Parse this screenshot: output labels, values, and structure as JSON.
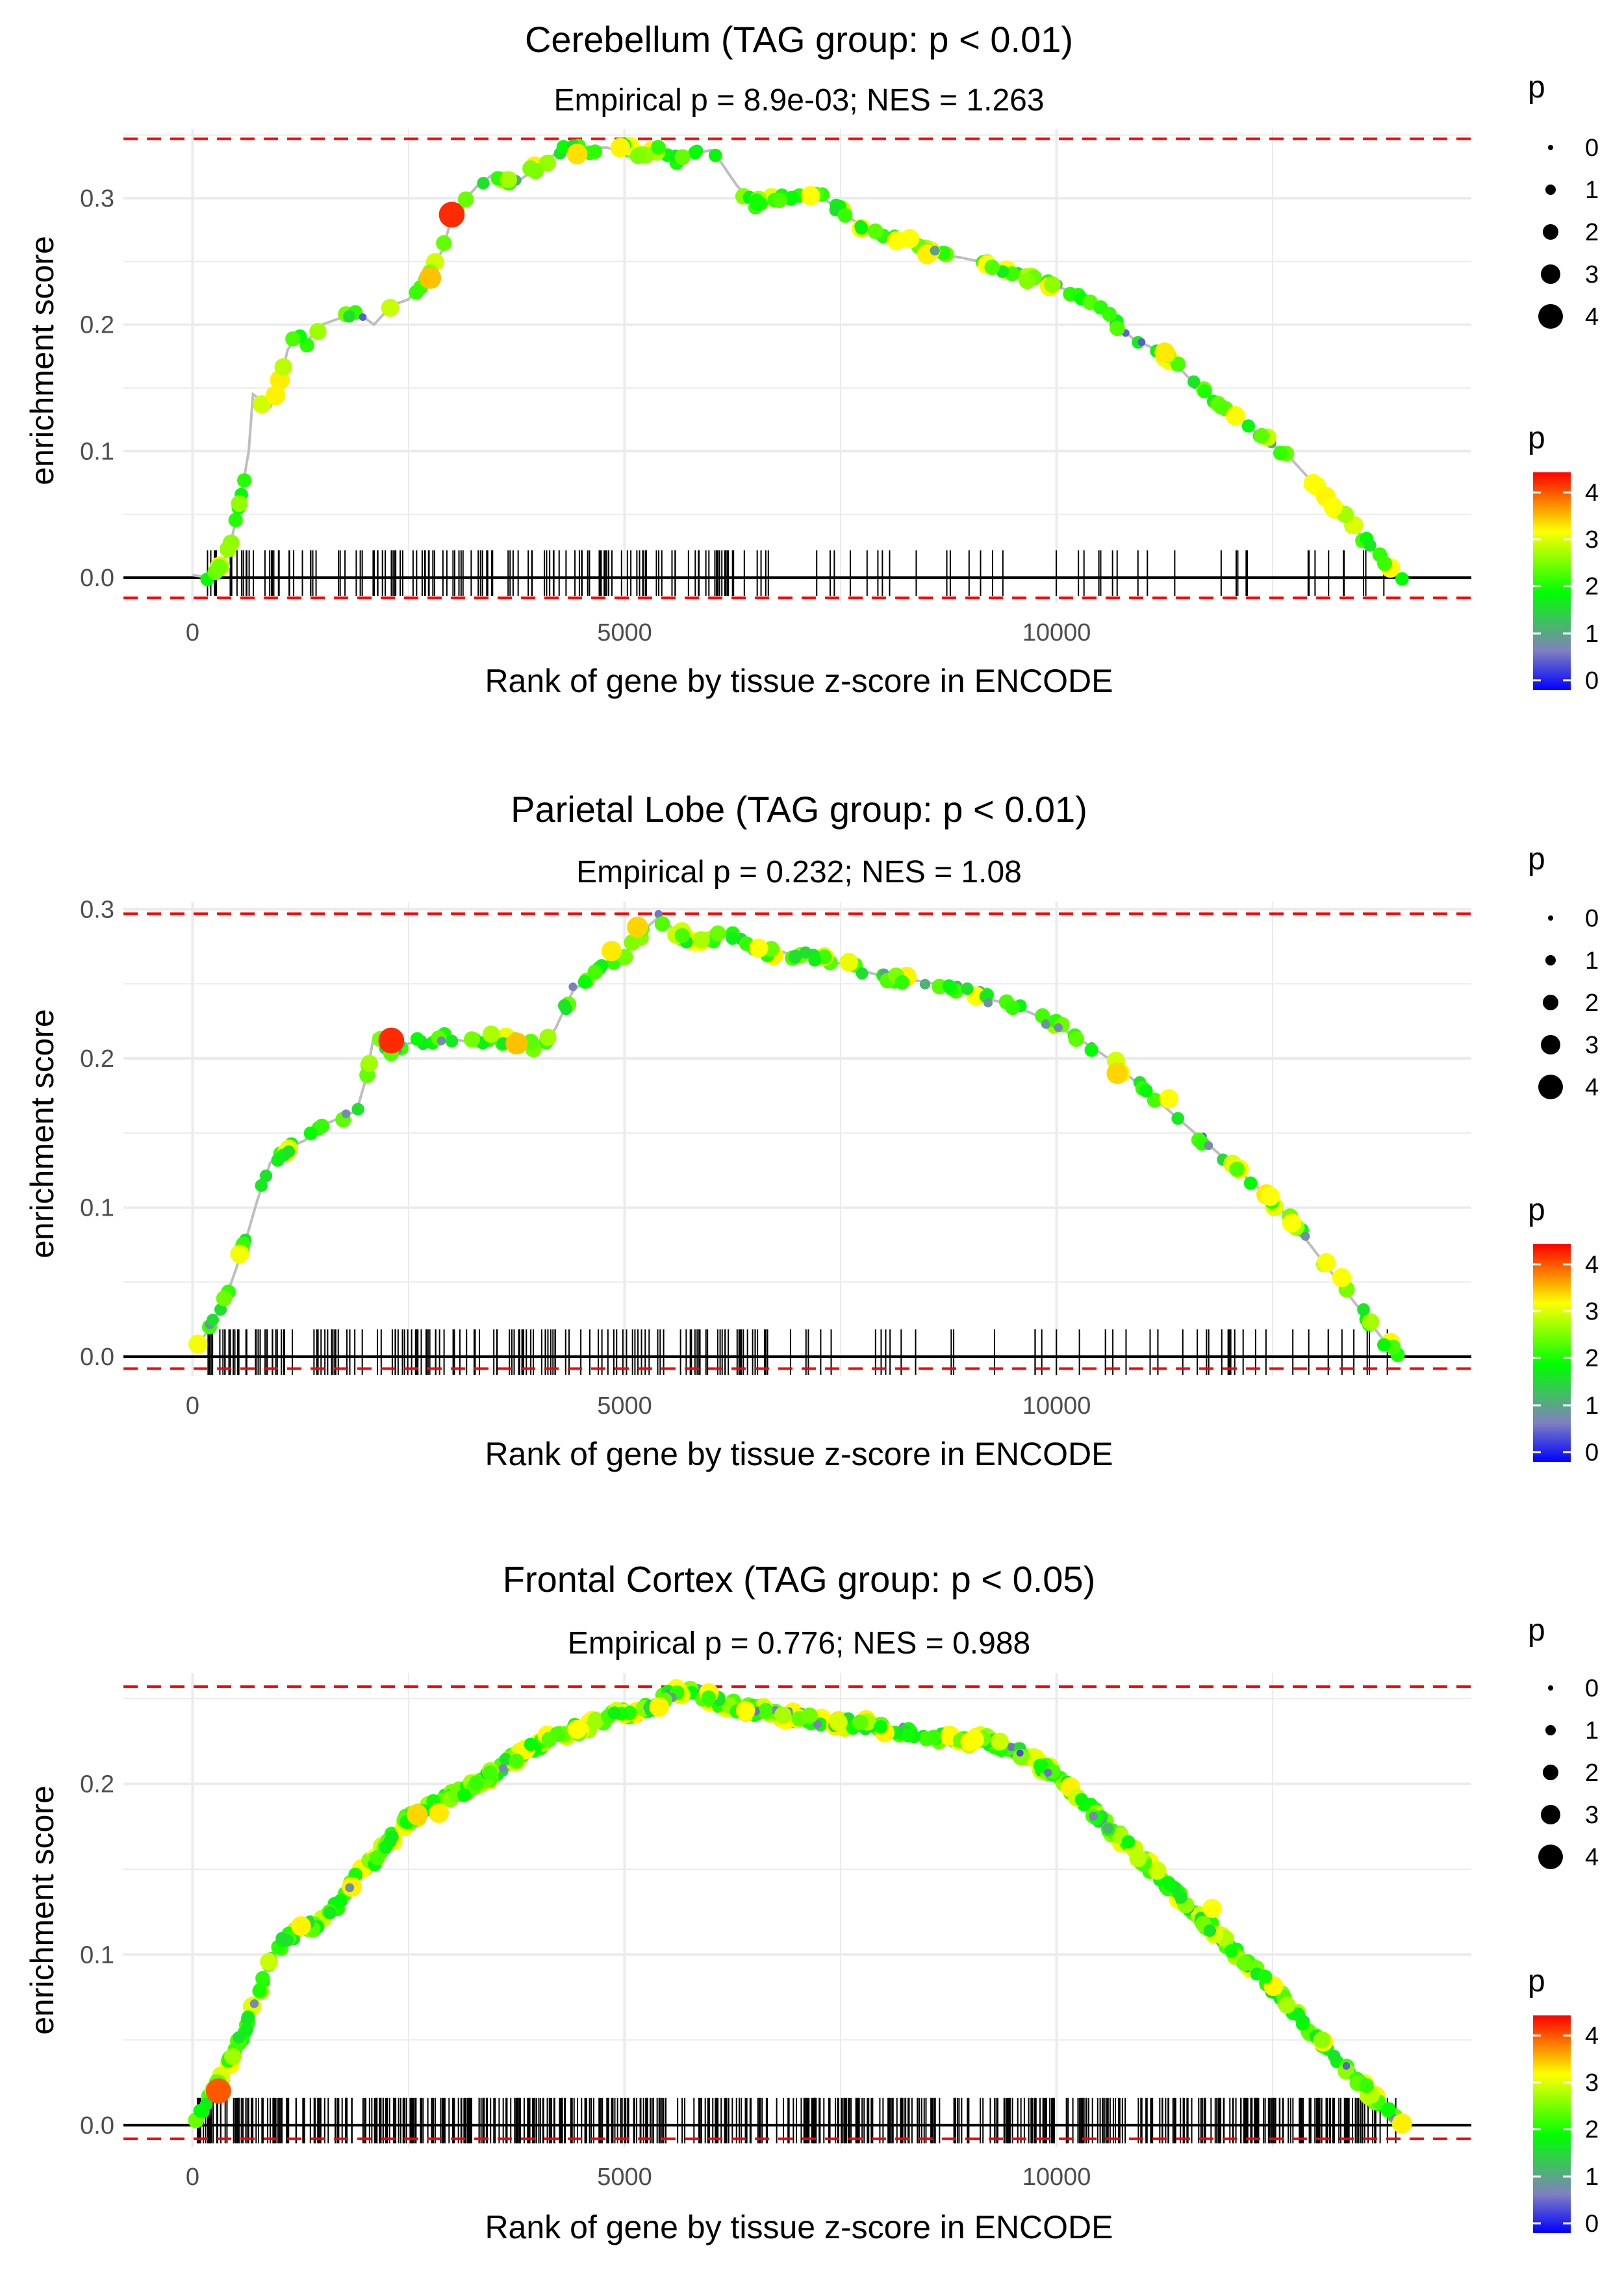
{
  "figure": {
    "x_axis_label": "Rank of gene by tissue z-score in ENCODE",
    "y_axis_label": "enrichment score",
    "size_legend_title": "p",
    "color_legend_title": "p",
    "size_legend_labels": [
      "0",
      "1",
      "2",
      "3",
      "4"
    ],
    "color_legend_labels": [
      "4",
      "3",
      "2",
      "1",
      "0"
    ],
    "colors": {
      "curve_line": "#bebebe",
      "max_line": "#ff0000",
      "zero_line": "#000000",
      "rug": "#000000",
      "gradient": [
        "#ff0000",
        "#ffff00",
        "#00ff00",
        "#8080c0",
        "#0000ff"
      ]
    }
  },
  "chart_data": [
    {
      "type": "scatter",
      "title": "Cerebellum (TAG group: p < 0.01)",
      "subtitle": "Empirical p = 8.9e-03; NES = 1.263",
      "xlabel": "Rank of gene by tissue z-score in ENCODE",
      "ylabel": "enrichment score",
      "xlim": [
        -800,
        14800
      ],
      "ylim": [
        -0.02,
        0.355
      ],
      "x_ticks": [
        0,
        5000,
        10000
      ],
      "x_tick_labels": [
        "0",
        "5000",
        "10000"
      ],
      "y_ticks": [
        0,
        0.1,
        0.2,
        0.3
      ],
      "y_tick_labels": [
        "0.0",
        "0.1",
        "0.2",
        "0.3"
      ],
      "max_es": 0.347,
      "min_es": -0.016,
      "n_genes": 14000,
      "n_points": 180,
      "seed": 11,
      "rug_count": 180,
      "rug_style": "sparse",
      "curve_x": [
        0,
        200,
        350,
        450,
        550,
        650,
        700,
        800,
        900,
        1000,
        1100,
        1200,
        1300,
        1500,
        1700,
        1900,
        2100,
        2300,
        2500,
        2700,
        2900,
        3000,
        3100,
        3300,
        3500,
        3700,
        3900,
        4100,
        4300,
        4400,
        4500,
        4700,
        4800,
        4900,
        5000,
        5200,
        5400,
        5600,
        5800,
        6000,
        6100,
        6300,
        6500,
        6700,
        6900,
        7100,
        7300,
        7500,
        7700,
        7900,
        8100,
        8300,
        8500,
        8700,
        8900,
        9100,
        9300,
        9500,
        9700,
        9900,
        10100,
        10300,
        10500,
        10700,
        10900,
        11100,
        11300,
        11500,
        11700,
        11900,
        12100,
        12300,
        12500,
        12700,
        12900,
        13100,
        13300,
        13500,
        13700,
        13850,
        14000
      ],
      "curve_y": [
        0.002,
        0.0,
        0.01,
        0.03,
        0.06,
        0.1,
        0.145,
        0.14,
        0.135,
        0.15,
        0.18,
        0.19,
        0.185,
        0.2,
        0.205,
        0.21,
        0.2,
        0.215,
        0.22,
        0.235,
        0.26,
        0.285,
        0.295,
        0.31,
        0.32,
        0.31,
        0.32,
        0.33,
        0.34,
        0.345,
        0.335,
        0.34,
        0.34,
        0.338,
        0.34,
        0.335,
        0.338,
        0.33,
        0.335,
        0.338,
        0.33,
        0.31,
        0.295,
        0.3,
        0.302,
        0.303,
        0.3,
        0.29,
        0.28,
        0.273,
        0.268,
        0.263,
        0.258,
        0.255,
        0.253,
        0.25,
        0.245,
        0.24,
        0.236,
        0.232,
        0.228,
        0.222,
        0.213,
        0.2,
        0.188,
        0.182,
        0.175,
        0.16,
        0.148,
        0.138,
        0.128,
        0.115,
        0.105,
        0.095,
        0.08,
        0.065,
        0.05,
        0.035,
        0.02,
        0.008,
        0.0
      ],
      "highlight_points": [
        {
          "x": 3000,
          "y": 0.287,
          "p": 4.4
        },
        {
          "x": 2750,
          "y": 0.237,
          "p": 3.6
        },
        {
          "x": 4450,
          "y": 0.335,
          "p": 3.3
        },
        {
          "x": 4950,
          "y": 0.34,
          "p": 3.1
        },
        {
          "x": 7150,
          "y": 0.302,
          "p": 3.0
        },
        {
          "x": 8300,
          "y": 0.268,
          "p": 3.0
        },
        {
          "x": 11250,
          "y": 0.178,
          "p": 3.2
        },
        {
          "x": 13200,
          "y": 0.056,
          "p": 3.0
        }
      ]
    },
    {
      "type": "scatter",
      "title": "Parietal Lobe (TAG group: p < 0.01)",
      "subtitle": "Empirical p = 0.232; NES = 1.08",
      "xlabel": "Rank of gene by tissue z-score in ENCODE",
      "ylabel": "enrichment score",
      "xlim": [
        -800,
        14800
      ],
      "ylim": [
        -0.013,
        0.305
      ],
      "x_ticks": [
        0,
        5000,
        10000
      ],
      "x_tick_labels": [
        "0",
        "5000",
        "10000"
      ],
      "y_ticks": [
        0,
        0.1,
        0.2,
        0.3
      ],
      "y_tick_labels": [
        "0.0",
        "0.1",
        "0.2",
        "0.3"
      ],
      "max_es": 0.297,
      "min_es": -0.008,
      "n_genes": 14000,
      "n_points": 200,
      "seed": 23,
      "rug_count": 200,
      "rug_style": "sparse",
      "curve_x": [
        0,
        150,
        300,
        450,
        600,
        750,
        900,
        1100,
        1300,
        1500,
        1700,
        1900,
        2000,
        2100,
        2200,
        2300,
        2500,
        2700,
        2900,
        3100,
        3300,
        3500,
        3700,
        3900,
        4000,
        4200,
        4400,
        4600,
        4800,
        5000,
        5200,
        5400,
        5600,
        5800,
        6000,
        6200,
        6400,
        6600,
        6800,
        7000,
        7200,
        7400,
        7600,
        7800,
        8000,
        8200,
        8400,
        8600,
        8800,
        9000,
        9200,
        9400,
        9600,
        9800,
        10000,
        10200,
        10400,
        10600,
        10800,
        11000,
        11200,
        11400,
        11600,
        11800,
        12000,
        12200,
        12400,
        12600,
        12800,
        13000,
        13200,
        13400,
        13600,
        13800,
        14000
      ],
      "curve_y": [
        0.005,
        0.015,
        0.03,
        0.05,
        0.075,
        0.105,
        0.13,
        0.14,
        0.145,
        0.155,
        0.16,
        0.165,
        0.185,
        0.215,
        0.21,
        0.205,
        0.21,
        0.212,
        0.214,
        0.212,
        0.21,
        0.215,
        0.21,
        0.212,
        0.205,
        0.22,
        0.245,
        0.255,
        0.265,
        0.27,
        0.285,
        0.295,
        0.285,
        0.278,
        0.28,
        0.285,
        0.275,
        0.27,
        0.272,
        0.268,
        0.268,
        0.265,
        0.262,
        0.258,
        0.255,
        0.254,
        0.252,
        0.25,
        0.248,
        0.245,
        0.24,
        0.237,
        0.233,
        0.228,
        0.222,
        0.215,
        0.208,
        0.2,
        0.19,
        0.18,
        0.17,
        0.16,
        0.15,
        0.14,
        0.13,
        0.12,
        0.11,
        0.098,
        0.085,
        0.07,
        0.055,
        0.04,
        0.025,
        0.01,
        0.0
      ],
      "highlight_points": [
        {
          "x": 2300,
          "y": 0.212,
          "p": 4.4
        },
        {
          "x": 3750,
          "y": 0.21,
          "p": 3.6
        },
        {
          "x": 4850,
          "y": 0.272,
          "p": 3.2
        },
        {
          "x": 5150,
          "y": 0.288,
          "p": 3.4
        },
        {
          "x": 6550,
          "y": 0.274,
          "p": 3.0
        },
        {
          "x": 10700,
          "y": 0.19,
          "p": 3.4
        },
        {
          "x": 11300,
          "y": 0.173,
          "p": 3.0
        },
        {
          "x": 13300,
          "y": 0.053,
          "p": 3.0
        }
      ]
    },
    {
      "type": "scatter",
      "title": "Frontal Cortex (TAG group: p < 0.05)",
      "subtitle": "Empirical p = 0.776; NES = 0.988",
      "xlabel": "Rank of gene by tissue z-score in ENCODE",
      "ylabel": "enrichment score",
      "xlim": [
        -800,
        14800
      ],
      "ylim": [
        -0.013,
        0.265
      ],
      "x_ticks": [
        0,
        5000,
        10000
      ],
      "x_tick_labels": [
        "0",
        "5000",
        "10000"
      ],
      "y_ticks": [
        0,
        0.1,
        0.2
      ],
      "y_tick_labels": [
        "0.0",
        "0.1",
        "0.2"
      ],
      "max_es": 0.257,
      "min_es": -0.008,
      "n_genes": 14000,
      "n_points": 600,
      "seed": 37,
      "rug_count": 600,
      "rug_style": "dense",
      "curve_x": [
        0,
        150,
        300,
        450,
        600,
        750,
        900,
        1100,
        1300,
        1500,
        1700,
        1900,
        2100,
        2300,
        2500,
        2700,
        2900,
        3100,
        3300,
        3500,
        3700,
        3900,
        4100,
        4300,
        4500,
        4700,
        4900,
        5100,
        5300,
        5500,
        5700,
        5900,
        6100,
        6300,
        6500,
        6700,
        6900,
        7100,
        7300,
        7500,
        7700,
        7900,
        8100,
        8300,
        8500,
        8700,
        8900,
        9100,
        9300,
        9500,
        9700,
        9900,
        10100,
        10300,
        10500,
        10700,
        10900,
        11100,
        11300,
        11500,
        11700,
        11900,
        12100,
        12300,
        12500,
        12700,
        12900,
        13100,
        13300,
        13500,
        13700,
        13900,
        14000
      ],
      "curve_y": [
        0.0,
        0.012,
        0.025,
        0.04,
        0.055,
        0.075,
        0.1,
        0.11,
        0.115,
        0.12,
        0.13,
        0.145,
        0.155,
        0.168,
        0.18,
        0.185,
        0.19,
        0.195,
        0.2,
        0.207,
        0.215,
        0.22,
        0.226,
        0.23,
        0.233,
        0.236,
        0.24,
        0.242,
        0.245,
        0.252,
        0.255,
        0.252,
        0.248,
        0.245,
        0.243,
        0.242,
        0.24,
        0.238,
        0.237,
        0.236,
        0.235,
        0.234,
        0.232,
        0.23,
        0.228,
        0.227,
        0.226,
        0.226,
        0.224,
        0.22,
        0.215,
        0.208,
        0.2,
        0.19,
        0.18,
        0.17,
        0.16,
        0.15,
        0.14,
        0.13,
        0.12,
        0.11,
        0.1,
        0.09,
        0.08,
        0.07,
        0.058,
        0.047,
        0.035,
        0.025,
        0.015,
        0.005,
        0.0
      ],
      "highlight_points": [
        {
          "x": 300,
          "y": 0.02,
          "p": 4.3
        },
        {
          "x": 2600,
          "y": 0.182,
          "p": 3.4
        },
        {
          "x": 2850,
          "y": 0.183,
          "p": 3.2
        },
        {
          "x": 4450,
          "y": 0.232,
          "p": 3.0
        },
        {
          "x": 5400,
          "y": 0.245,
          "p": 3.1
        },
        {
          "x": 6400,
          "y": 0.243,
          "p": 3.0
        },
        {
          "x": 9050,
          "y": 0.226,
          "p": 3.0
        },
        {
          "x": 11800,
          "y": 0.127,
          "p": 3.0
        }
      ]
    }
  ]
}
